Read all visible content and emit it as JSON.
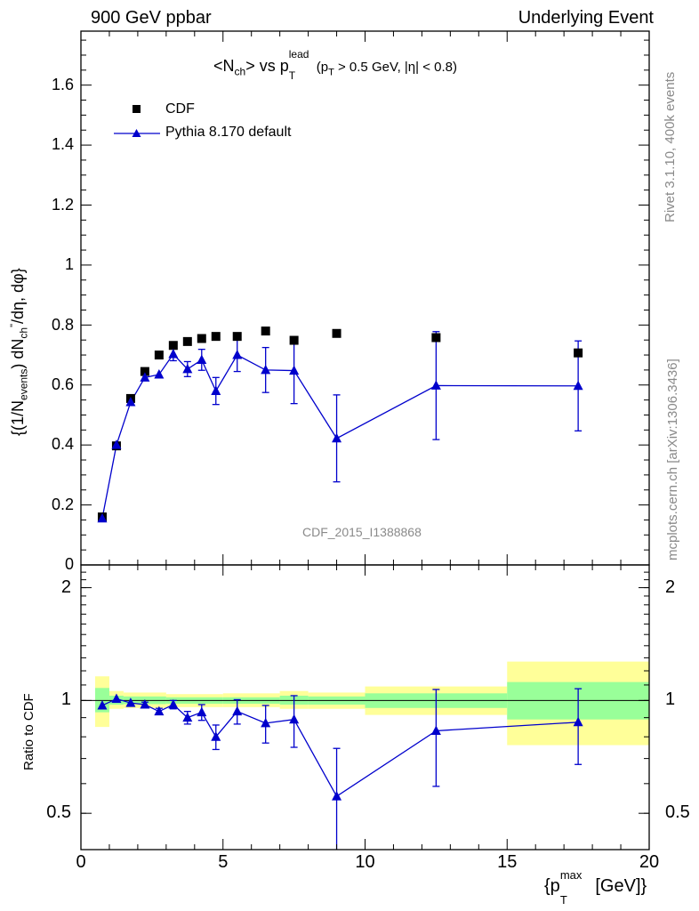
{
  "header": {
    "left": "900 GeV ppbar",
    "right": "Underlying Event"
  },
  "side": {
    "rivet": "Rivet 3.1.10,  400k events",
    "mcplots": "mcplots.cern.ch [arXiv:1306.3436]"
  },
  "chart_data": [
    {
      "type": "scatter",
      "title_main": "<N",
      "title_sub": "ch",
      "title_vs": "> vs p",
      "title_sup": "lead",
      "title_T": "T",
      "title_cut": "(p",
      "title_cut_T": "T",
      "title_cut_rest": " > 0.5 GeV, |η| < 0.8)",
      "ylabel": "{(1/N_events) dN_ch^{\"}/dη, dφ}",
      "ylabel_parts": {
        "a": "{(1/N",
        "b": "events",
        "c": ") dN",
        "d": "ch",
        "e": "\"",
        "f": "/dη, dφ}"
      },
      "watermark": "CDF_2015_I1388868",
      "xlim": [
        0,
        20
      ],
      "ylim": [
        0,
        1.78
      ],
      "yticks": [
        0,
        0.2,
        0.4,
        0.6,
        0.8,
        1,
        1.2,
        1.4,
        1.6
      ],
      "ytick_labels": [
        "0",
        "0.2",
        "0.4",
        "0.6",
        "0.8",
        "1",
        "1.2",
        "1.4",
        "1.6"
      ],
      "legend": {
        "position": "top-left",
        "cdf": "CDF",
        "pythia": "Pythia 8.170 default"
      },
      "series": [
        {
          "name": "CDF",
          "marker": "square",
          "color": "#000000",
          "x": [
            0.75,
            1.25,
            1.75,
            2.25,
            2.75,
            3.25,
            3.75,
            4.25,
            4.75,
            5.5,
            6.5,
            7.5,
            9.0,
            12.5,
            17.5
          ],
          "y": [
            0.16,
            0.397,
            0.555,
            0.645,
            0.7,
            0.732,
            0.745,
            0.755,
            0.762,
            0.762,
            0.78,
            0.749,
            0.772,
            0.758,
            0.707
          ]
        },
        {
          "name": "Pythia 8.170 default",
          "marker": "triangle",
          "color": "#0000cc",
          "x": [
            0.75,
            1.25,
            1.75,
            2.25,
            2.75,
            3.25,
            3.75,
            4.25,
            4.75,
            5.5,
            6.5,
            7.5,
            9.0,
            12.5,
            17.5
          ],
          "y": [
            0.155,
            0.4,
            0.543,
            0.625,
            0.635,
            0.703,
            0.653,
            0.684,
            0.58,
            0.7,
            0.65,
            0.648,
            0.422,
            0.598,
            0.597
          ],
          "yerr": [
            0.005,
            0.005,
            0.008,
            0.01,
            0.012,
            0.022,
            0.025,
            0.035,
            0.045,
            0.055,
            0.075,
            0.11,
            0.145,
            0.18,
            0.15
          ]
        }
      ]
    },
    {
      "type": "scatter",
      "ylabel": "Ratio to CDF",
      "xlabel_parts": {
        "a": "{p",
        "b": "max",
        "c": "T",
        "d": " [GeV]}"
      },
      "xlim": [
        0,
        20
      ],
      "ylim": [
        0.4,
        2.3
      ],
      "xticks": [
        0,
        5,
        10,
        15,
        20
      ],
      "xtick_labels": [
        "0",
        "5",
        "10",
        "15",
        "20"
      ],
      "yticks_major": [
        0.5,
        1,
        2
      ],
      "ytick_labels": [
        "0.5",
        "1",
        "2"
      ],
      "bands": [
        {
          "x0": 0.5,
          "x1": 1.0,
          "y1_lo": 0.93,
          "y1_hi": 1.08,
          "y2_lo": 0.85,
          "y2_hi": 1.16
        },
        {
          "x0": 1.0,
          "x1": 1.5,
          "y1_lo": 0.975,
          "y1_hi": 1.03,
          "y2_lo": 0.95,
          "y2_hi": 1.06
        },
        {
          "x0": 1.5,
          "x1": 3.0,
          "y1_lo": 0.978,
          "y1_hi": 1.025,
          "y2_lo": 0.955,
          "y2_hi": 1.05
        },
        {
          "x0": 3.0,
          "x1": 5.0,
          "y1_lo": 0.98,
          "y1_hi": 1.02,
          "y2_lo": 0.96,
          "y2_hi": 1.04
        },
        {
          "x0": 5.0,
          "x1": 7.0,
          "y1_lo": 0.98,
          "y1_hi": 1.02,
          "y2_lo": 0.96,
          "y2_hi": 1.045
        },
        {
          "x0": 7.0,
          "x1": 8.0,
          "y1_lo": 0.975,
          "y1_hi": 1.03,
          "y2_lo": 0.95,
          "y2_hi": 1.06
        },
        {
          "x0": 8.0,
          "x1": 10.0,
          "y1_lo": 0.975,
          "y1_hi": 1.025,
          "y2_lo": 0.95,
          "y2_hi": 1.05
        },
        {
          "x0": 10.0,
          "x1": 15.0,
          "y1_lo": 0.955,
          "y1_hi": 1.045,
          "y2_lo": 0.915,
          "y2_hi": 1.09
        },
        {
          "x0": 15.0,
          "x1": 20.0,
          "y1_lo": 0.89,
          "y1_hi": 1.12,
          "y2_lo": 0.76,
          "y2_hi": 1.27
        }
      ],
      "band_colors": {
        "inner": "#99ff99",
        "outer": "#ffff99"
      },
      "series": [
        {
          "name": "Pythia 8.170 default",
          "marker": "triangle",
          "color": "#0000cc",
          "x": [
            0.75,
            1.25,
            1.75,
            2.25,
            2.75,
            3.25,
            3.75,
            4.25,
            4.75,
            5.5,
            6.5,
            7.5,
            9.0,
            12.5,
            17.5
          ],
          "y": [
            0.97,
            1.01,
            0.985,
            0.975,
            0.935,
            0.975,
            0.9,
            0.93,
            0.8,
            0.935,
            0.87,
            0.89,
            0.555,
            0.83,
            0.875
          ],
          "yerr": [
            0.01,
            0.01,
            0.012,
            0.015,
            0.018,
            0.025,
            0.035,
            0.045,
            0.06,
            0.07,
            0.1,
            0.14,
            0.19,
            0.24,
            0.2
          ]
        }
      ]
    }
  ]
}
